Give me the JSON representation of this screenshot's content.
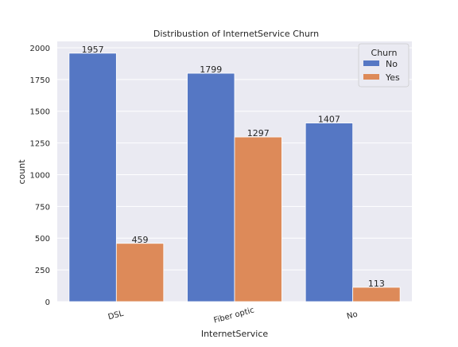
{
  "chart_data": {
    "type": "bar",
    "title": "Distribustion of InternetService Churn",
    "xlabel": "InternetService",
    "ylabel": "count",
    "categories": [
      "DSL",
      "Fiber optic",
      "No"
    ],
    "series": [
      {
        "name": "No",
        "values": [
          1957,
          1799,
          1407
        ],
        "color": "#5577c4"
      },
      {
        "name": "Yes",
        "values": [
          459,
          1297,
          113
        ],
        "color": "#dd8a59"
      }
    ],
    "ylim": [
      0,
      2050
    ],
    "yticks": [
      0,
      250,
      500,
      750,
      1000,
      1250,
      1500,
      1750,
      2000
    ],
    "grid": true,
    "background": "#eaeaf2",
    "legend": {
      "title": "Churn",
      "position": "top-right"
    }
  }
}
